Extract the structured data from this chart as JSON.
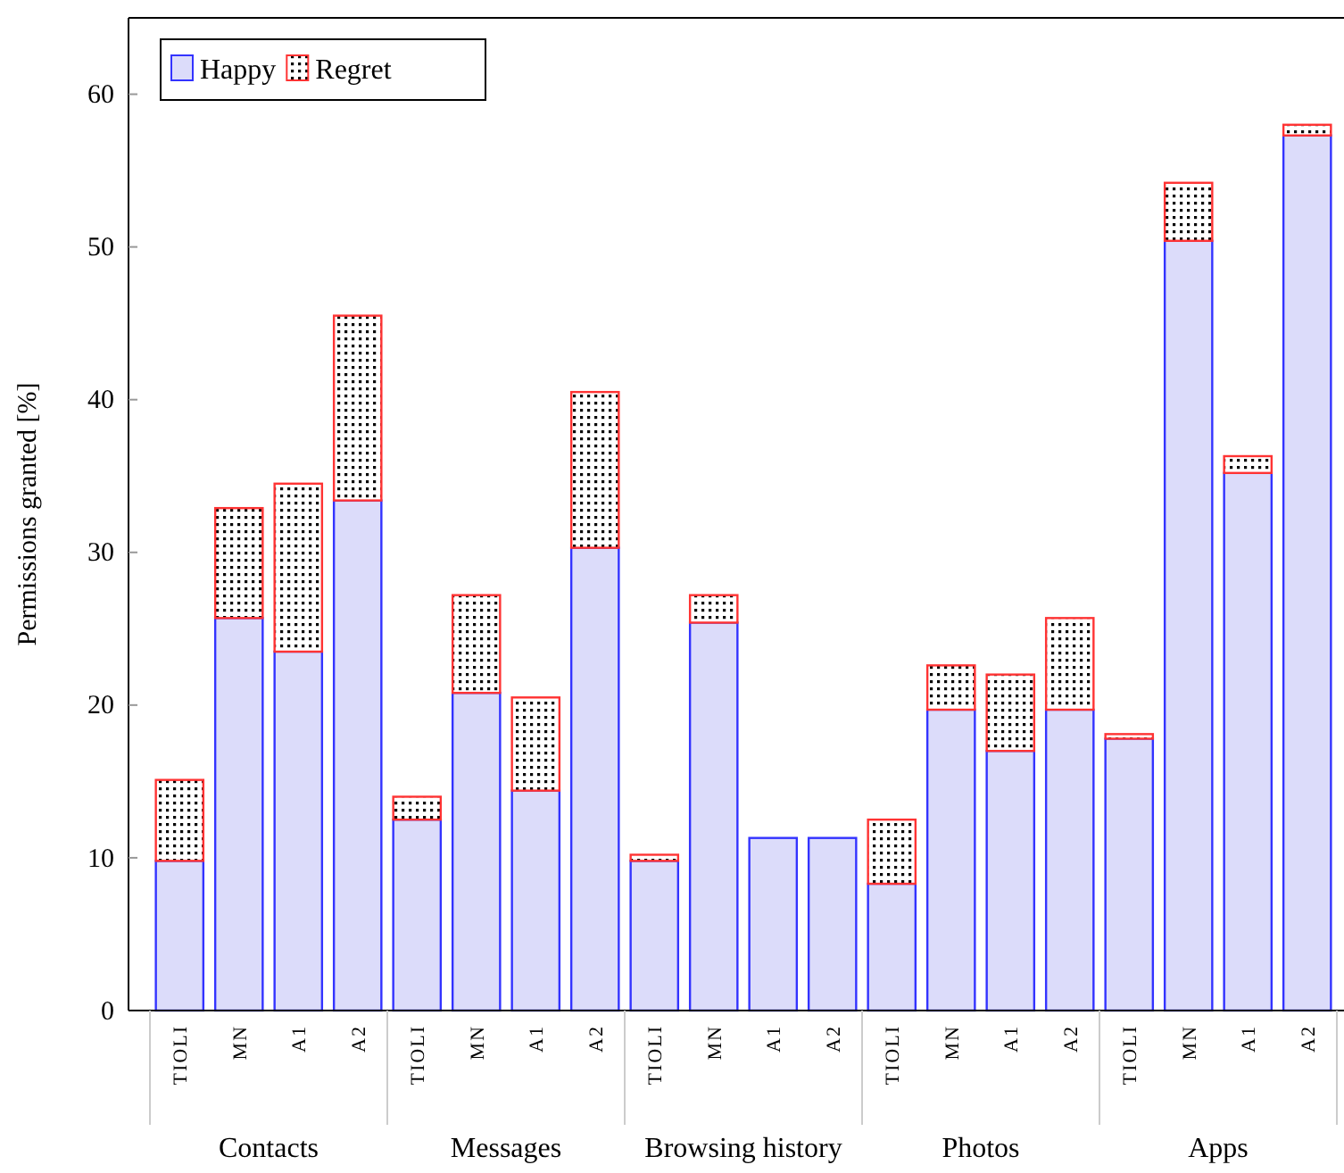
{
  "chart_data": {
    "type": "bar",
    "stacked": true,
    "ylabel": "Permissions granted [%]",
    "categories": [
      "TIOLI",
      "MN",
      "A1",
      "A2",
      "TIOLI",
      "MN",
      "A1",
      "A2",
      "TIOLI",
      "MN",
      "A1",
      "A2",
      "TIOLI",
      "MN",
      "A1",
      "A2",
      "TIOLI",
      "MN",
      "A1",
      "A2"
    ],
    "annotations": [
      "Contacts",
      "Messages",
      "Browsing history",
      "Photos",
      "Apps"
    ],
    "series": [
      {
        "name": "Happy",
        "color": "#dcdcfa",
        "values": [
          9.8,
          25.7,
          23.5,
          33.4,
          12.5,
          20.8,
          14.4,
          30.3,
          9.8,
          25.4,
          11.3,
          11.3,
          8.3,
          19.7,
          17.0,
          19.7,
          17.8,
          50.4,
          35.2,
          57.3
        ]
      },
      {
        "name": "Regret",
        "color": "#ff3333",
        "values": [
          5.3,
          7.2,
          11.0,
          12.1,
          1.5,
          6.4,
          6.1,
          10.2,
          0.4,
          1.8,
          0,
          0,
          4.2,
          2.9,
          5.0,
          6.0,
          0.3,
          3.8,
          1.1,
          0.7
        ]
      }
    ],
    "ylim": [
      0,
      65
    ],
    "yticks": [
      0,
      10,
      20,
      30,
      40,
      50,
      60
    ],
    "legend": "top left"
  }
}
